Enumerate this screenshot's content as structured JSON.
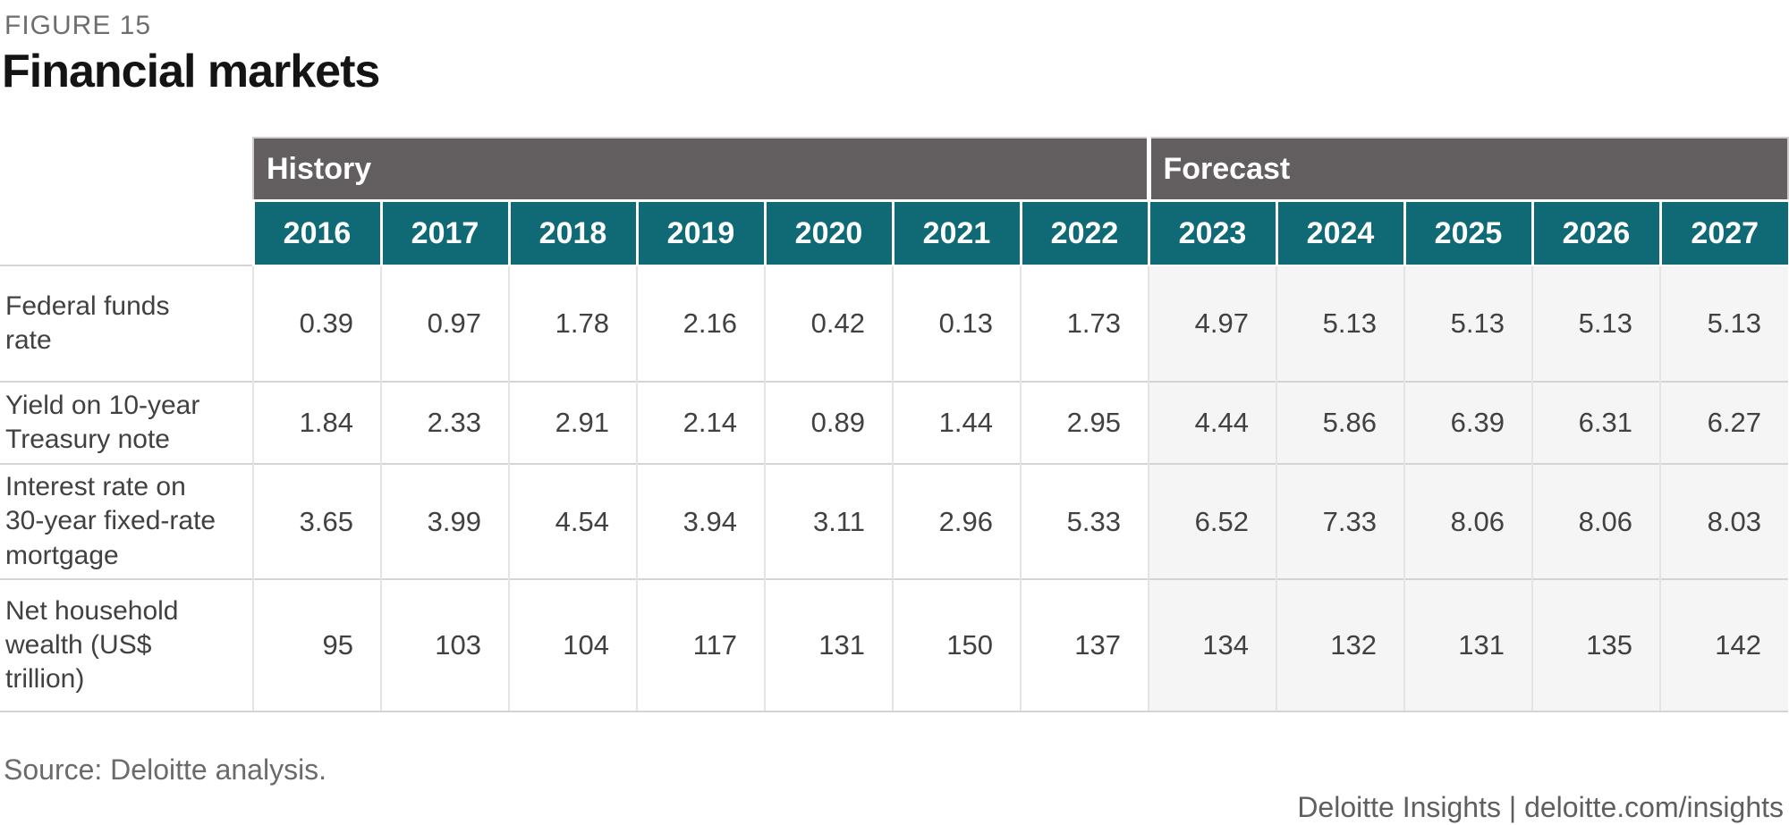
{
  "figure_label": "FIGURE 15",
  "title": "Financial markets",
  "source": "Source: Deloitte analysis.",
  "footer": "Deloitte Insights | deloitte.com/insights",
  "colors": {
    "header_band_gray": "#635f60",
    "year_header_teal": "#0f6a75",
    "forecast_cell_bg": "#f5f5f6",
    "row_border_gray": "#d4d4d4",
    "text_dark_gray": "#414042"
  },
  "table": {
    "history_label": "History",
    "forecast_label": "Forecast",
    "years": [
      "2016",
      "2017",
      "2018",
      "2019",
      "2020",
      "2021",
      "2022",
      "2023",
      "2024",
      "2025",
      "2026",
      "2027"
    ],
    "history_year_count": 7,
    "forecast_year_count": 5,
    "rows": [
      {
        "label": "Federal funds\nrate",
        "values": [
          "0.39",
          "0.97",
          "1.78",
          "2.16",
          "0.42",
          "0.13",
          "1.73",
          "4.97",
          "5.13",
          "5.13",
          "5.13",
          "5.13"
        ]
      },
      {
        "label": "Yield on 10-year\nTreasury note",
        "values": [
          "1.84",
          "2.33",
          "2.91",
          "2.14",
          "0.89",
          "1.44",
          "2.95",
          "4.44",
          "5.86",
          "6.39",
          "6.31",
          "6.27"
        ]
      },
      {
        "label": "Interest rate on\n30-year fixed-rate\nmortgage",
        "values": [
          "3.65",
          "3.99",
          "4.54",
          "3.94",
          "3.11",
          "2.96",
          "5.33",
          "6.52",
          "7.33",
          "8.06",
          "8.06",
          "8.03"
        ]
      },
      {
        "label": "Net household\nwealth (US$\ntrillion)",
        "values": [
          "95",
          "103",
          "104",
          "117",
          "131",
          "150",
          "137",
          "134",
          "132",
          "131",
          "135",
          "142"
        ]
      }
    ]
  },
  "chart_data": {
    "type": "table",
    "title": "Financial markets",
    "figure": "FIGURE 15",
    "years": [
      2016,
      2017,
      2018,
      2019,
      2020,
      2021,
      2022,
      2023,
      2024,
      2025,
      2026,
      2027
    ],
    "column_groups": [
      {
        "label": "History",
        "years": [
          2016,
          2017,
          2018,
          2019,
          2020,
          2021,
          2022
        ]
      },
      {
        "label": "Forecast",
        "years": [
          2023,
          2024,
          2025,
          2026,
          2027
        ]
      }
    ],
    "series": [
      {
        "name": "Federal funds rate",
        "values": [
          0.39,
          0.97,
          1.78,
          2.16,
          0.42,
          0.13,
          1.73,
          4.97,
          5.13,
          5.13,
          5.13,
          5.13
        ]
      },
      {
        "name": "Yield on 10-year Treasury note",
        "values": [
          1.84,
          2.33,
          2.91,
          2.14,
          0.89,
          1.44,
          2.95,
          4.44,
          5.86,
          6.39,
          6.31,
          6.27
        ]
      },
      {
        "name": "Interest rate on 30-year fixed-rate mortgage",
        "values": [
          3.65,
          3.99,
          4.54,
          3.94,
          3.11,
          2.96,
          5.33,
          6.52,
          7.33,
          8.06,
          8.06,
          8.03
        ]
      },
      {
        "name": "Net household wealth (US$ trillion)",
        "values": [
          95,
          103,
          104,
          117,
          131,
          150,
          137,
          134,
          132,
          131,
          135,
          142
        ]
      }
    ],
    "source": "Source: Deloitte analysis.",
    "footer": "Deloitte Insights | deloitte.com/insights"
  }
}
